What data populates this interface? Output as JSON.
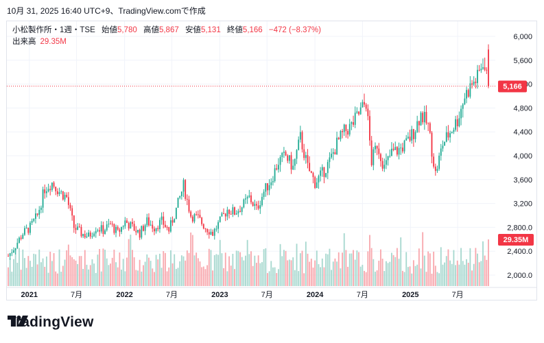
{
  "caption": "10月 31, 2025 16:40 UTC+9、TradingView.comで作成",
  "legend": {
    "symbol": "小松製作所・1週・TSE",
    "open_label": "始値",
    "open": "5,780",
    "high_label": "高値",
    "high": "5,867",
    "low_label": "安値",
    "low": "5,131",
    "close_label": "終値",
    "close": "5,166",
    "change": "−472 (−8.37%)",
    "volume_label": "出来高",
    "volume": "29.35M"
  },
  "brand": {
    "name": "TradingView"
  },
  "colors": {
    "up": "#22ab94",
    "down": "#f23645",
    "up_vol": "#a7d8cf",
    "down_vol": "#f8a8ae",
    "grid": "#f0f3fa"
  },
  "chart_data": {
    "type": "candlestick",
    "interval": "1週",
    "y_ticks": [
      "2,000.0",
      "2,400.0",
      "2,800.0",
      "3,200",
      "3,600",
      "4,000",
      "4,400",
      "4,800",
      "5,200",
      "5,600",
      "6,000"
    ],
    "y_tick_values": [
      2000,
      2400,
      2800,
      3200,
      3600,
      4000,
      4400,
      4800,
      5200,
      5600,
      6000
    ],
    "ylim": [
      1900,
      6150
    ],
    "x_ticks": [
      "2021",
      "7月",
      "2022",
      "7月",
      "2023",
      "7月",
      "2024",
      "7月",
      "2025",
      "7月"
    ],
    "x_tick_dates": [
      "2021-01-01",
      "2021-07-01",
      "2022-01-01",
      "2022-07-01",
      "2023-01-01",
      "2023-07-01",
      "2024-01-01",
      "2024-07-01",
      "2025-01-01",
      "2025-07-01"
    ],
    "last_price": 5166,
    "last_price_label": "5,166",
    "last_volume_label": "29.35M",
    "start_date": "2020-10-12",
    "end_date": "2025-10-27",
    "anchors": [
      [
        "2020-10-12",
        2320
      ],
      [
        "2020-11-09",
        2500
      ],
      [
        "2020-12-07",
        2700
      ],
      [
        "2021-01-04",
        2800
      ],
      [
        "2021-02-01",
        3000
      ],
      [
        "2021-03-01",
        3450
      ],
      [
        "2021-03-29",
        3550
      ],
      [
        "2021-04-26",
        3400
      ],
      [
        "2021-05-24",
        3300
      ],
      [
        "2021-06-21",
        2800
      ],
      [
        "2021-07-19",
        2700
      ],
      [
        "2021-08-16",
        2650
      ],
      [
        "2021-09-13",
        2800
      ],
      [
        "2021-10-11",
        2750
      ],
      [
        "2021-11-08",
        2850
      ],
      [
        "2021-12-06",
        2700
      ],
      [
        "2022-01-03",
        2900
      ],
      [
        "2022-01-31",
        2800
      ],
      [
        "2022-02-28",
        2700
      ],
      [
        "2022-03-28",
        2900
      ],
      [
        "2022-04-25",
        2800
      ],
      [
        "2022-05-23",
        2900
      ],
      [
        "2022-06-20",
        2750
      ],
      [
        "2022-07-18",
        3100
      ],
      [
        "2022-08-15",
        3500
      ],
      [
        "2022-09-12",
        3000
      ],
      [
        "2022-10-10",
        2950
      ],
      [
        "2022-11-07",
        2800
      ],
      [
        "2022-12-05",
        2700
      ],
      [
        "2023-01-02",
        2900
      ],
      [
        "2023-01-30",
        3100
      ],
      [
        "2023-02-27",
        3050
      ],
      [
        "2023-03-27",
        3150
      ],
      [
        "2023-04-24",
        3300
      ],
      [
        "2023-05-22",
        3100
      ],
      [
        "2023-06-19",
        3400
      ],
      [
        "2023-07-17",
        3600
      ],
      [
        "2023-08-14",
        3900
      ],
      [
        "2023-09-11",
        4000
      ],
      [
        "2023-10-09",
        3800
      ],
      [
        "2023-11-06",
        4300
      ],
      [
        "2023-12-04",
        3800
      ],
      [
        "2024-01-01",
        3550
      ],
      [
        "2024-01-29",
        3700
      ],
      [
        "2024-02-26",
        3900
      ],
      [
        "2024-03-25",
        4200
      ],
      [
        "2024-04-22",
        4400
      ],
      [
        "2024-05-20",
        4500
      ],
      [
        "2024-06-17",
        4700
      ],
      [
        "2024-07-15",
        4900
      ],
      [
        "2024-08-05",
        3900
      ],
      [
        "2024-08-26",
        4200
      ],
      [
        "2024-09-23",
        3800
      ],
      [
        "2024-10-21",
        4050
      ],
      [
        "2024-11-18",
        4100
      ],
      [
        "2024-12-16",
        4200
      ],
      [
        "2025-01-13",
        4400
      ],
      [
        "2025-02-10",
        4700
      ],
      [
        "2025-03-10",
        4500
      ],
      [
        "2025-04-07",
        3700
      ],
      [
        "2025-05-05",
        4200
      ],
      [
        "2025-06-02",
        4400
      ],
      [
        "2025-06-30",
        4600
      ],
      [
        "2025-07-28",
        5000
      ],
      [
        "2025-08-25",
        5200
      ],
      [
        "2025-09-15",
        5300
      ],
      [
        "2025-10-06",
        5600
      ],
      [
        "2025-10-27",
        5166
      ]
    ]
  }
}
